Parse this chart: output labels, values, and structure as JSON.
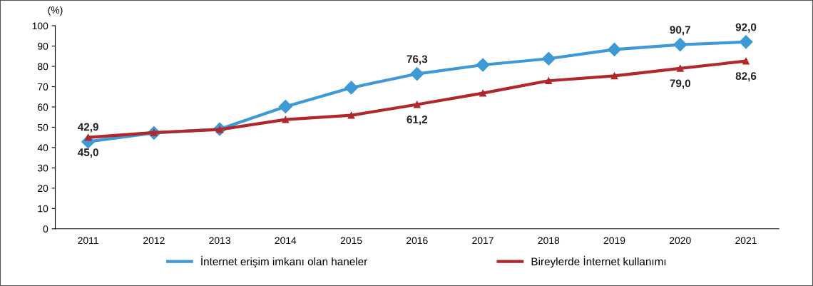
{
  "chart_data": {
    "type": "line",
    "ylabel": "(%)",
    "categories": [
      "2011",
      "2012",
      "2013",
      "2014",
      "2015",
      "2016",
      "2017",
      "2018",
      "2019",
      "2020",
      "2021"
    ],
    "series": [
      {
        "name": "İnternet erişim imkanı olan haneler",
        "color": "#3d9ad6",
        "marker": "diamond",
        "values": [
          42.9,
          47.2,
          49.1,
          60.2,
          69.5,
          76.3,
          80.7,
          83.8,
          88.3,
          90.7,
          92.0
        ],
        "value_labels": [
          "42,9",
          null,
          null,
          null,
          null,
          "76,3",
          null,
          null,
          null,
          "90,7",
          "92,0"
        ]
      },
      {
        "name": "Bireylerde İnternet kullanımı",
        "color": "#b0282c",
        "marker": "triangle",
        "values": [
          45.0,
          47.4,
          48.9,
          53.8,
          55.9,
          61.2,
          66.8,
          72.9,
          75.3,
          79.0,
          82.6
        ],
        "value_labels": [
          "45,0",
          null,
          null,
          null,
          null,
          "61,2",
          null,
          null,
          null,
          "79,0",
          "82,6"
        ]
      }
    ],
    "ylim": [
      0,
      100
    ],
    "yticks": [
      0,
      10,
      20,
      30,
      40,
      50,
      60,
      70,
      80,
      90,
      100
    ],
    "grid": false,
    "legend": "bottom",
    "line_style": "solid"
  }
}
